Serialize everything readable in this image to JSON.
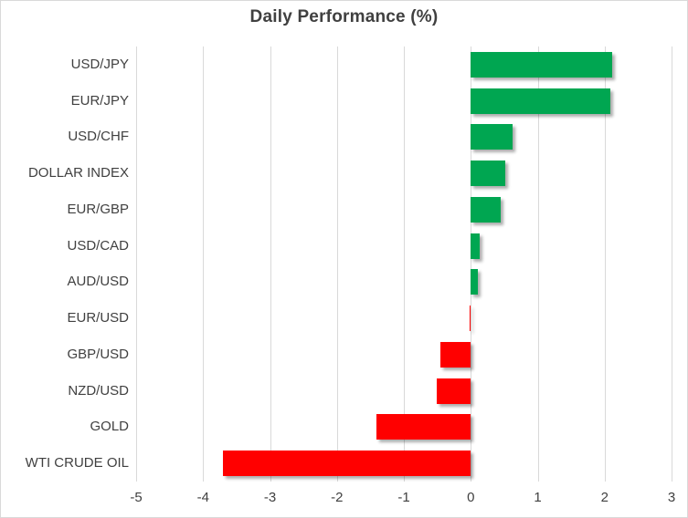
{
  "chart_data": {
    "type": "bar",
    "orientation": "horizontal",
    "title": "Daily Performance (%)",
    "categories": [
      "USD/JPY",
      "EUR/JPY",
      "USD/CHF",
      "DOLLAR INDEX",
      "EUR/GBP",
      "USD/CAD",
      "AUD/USD",
      "EUR/USD",
      "GBP/USD",
      "NZD/USD",
      "GOLD",
      "WTI CRUDE OIL"
    ],
    "values": [
      2.11,
      2.08,
      0.62,
      0.52,
      0.45,
      0.13,
      0.11,
      -0.02,
      -0.45,
      -0.51,
      -1.41,
      -3.7
    ],
    "xlabel": "",
    "ylabel": "",
    "xlim": [
      -5,
      3
    ],
    "x_ticks": [
      "-5",
      "-4",
      "-3",
      "-2",
      "-1",
      "0",
      "1",
      "2",
      "3"
    ],
    "x_tick_values": [
      -5,
      -4,
      -3,
      -2,
      -1,
      0,
      1,
      2,
      3
    ],
    "grid": "vertical",
    "legend": "none",
    "colors": {
      "positive_bar": "#00a651",
      "negative_bar": "#ff0000",
      "gridline": "#d9d9d9",
      "text": "#404040",
      "border": "#d9d9d9",
      "background": "#ffffff"
    }
  }
}
